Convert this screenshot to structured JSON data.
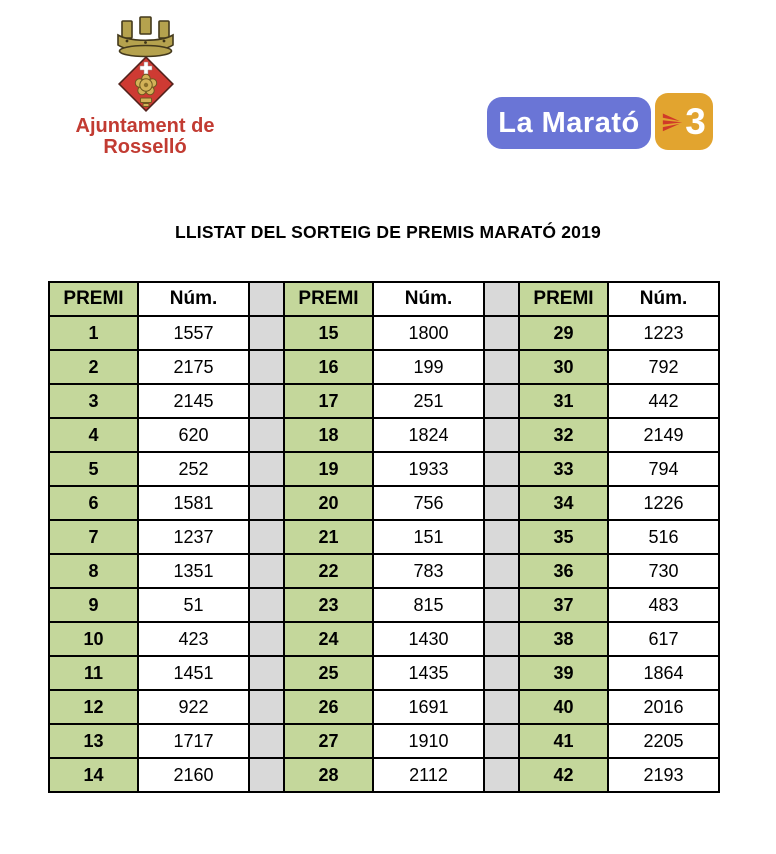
{
  "logo_ajuntament": {
    "line1": "Ajuntament de",
    "line2": "Rosselló",
    "text_color": "#c23b32",
    "shield_red": "#ce3a33",
    "crown_gold": "#b5a24e",
    "rose_gold": "#d3b258"
  },
  "logo_marato": {
    "label": "La Marató",
    "bg_color": "#6a75d6",
    "tv3_text": "3",
    "tv3_bg_color": "#e2a42f",
    "tv3_arrow_color": "#d03a28"
  },
  "title": "LLISTAT DEL SORTEIG DE PREMIS MARATÓ 2019",
  "table": {
    "col_premi_label": "PREMI",
    "col_num_label": "Núm.",
    "premi_bg": "#c4d79b",
    "spacer_bg": "#d9d9d9",
    "border_color": "#000000",
    "groups": [
      {
        "rows": [
          {
            "premi": "1",
            "num": "1557"
          },
          {
            "premi": "2",
            "num": "2175"
          },
          {
            "premi": "3",
            "num": "2145"
          },
          {
            "premi": "4",
            "num": "620"
          },
          {
            "premi": "5",
            "num": "252"
          },
          {
            "premi": "6",
            "num": "1581"
          },
          {
            "premi": "7",
            "num": "1237"
          },
          {
            "premi": "8",
            "num": "1351"
          },
          {
            "premi": "9",
            "num": "51"
          },
          {
            "premi": "10",
            "num": "423"
          },
          {
            "premi": "11",
            "num": "1451"
          },
          {
            "premi": "12",
            "num": "922"
          },
          {
            "premi": "13",
            "num": "1717"
          },
          {
            "premi": "14",
            "num": "2160"
          }
        ]
      },
      {
        "rows": [
          {
            "premi": "15",
            "num": "1800"
          },
          {
            "premi": "16",
            "num": "199"
          },
          {
            "premi": "17",
            "num": "251"
          },
          {
            "premi": "18",
            "num": "1824"
          },
          {
            "premi": "19",
            "num": "1933"
          },
          {
            "premi": "20",
            "num": "756"
          },
          {
            "premi": "21",
            "num": "151"
          },
          {
            "premi": "22",
            "num": "783"
          },
          {
            "premi": "23",
            "num": "815"
          },
          {
            "premi": "24",
            "num": "1430"
          },
          {
            "premi": "25",
            "num": "1435"
          },
          {
            "premi": "26",
            "num": "1691"
          },
          {
            "premi": "27",
            "num": "1910"
          },
          {
            "premi": "28",
            "num": "2112"
          }
        ]
      },
      {
        "rows": [
          {
            "premi": "29",
            "num": "1223"
          },
          {
            "premi": "30",
            "num": "792"
          },
          {
            "premi": "31",
            "num": "442"
          },
          {
            "premi": "32",
            "num": "2149"
          },
          {
            "premi": "33",
            "num": "794"
          },
          {
            "premi": "34",
            "num": "1226"
          },
          {
            "premi": "35",
            "num": "516"
          },
          {
            "premi": "36",
            "num": "730"
          },
          {
            "premi": "37",
            "num": "483"
          },
          {
            "premi": "38",
            "num": "617"
          },
          {
            "premi": "39",
            "num": "1864"
          },
          {
            "premi": "40",
            "num": "2016"
          },
          {
            "premi": "41",
            "num": "2205"
          },
          {
            "premi": "42",
            "num": "2193"
          }
        ]
      }
    ]
  }
}
